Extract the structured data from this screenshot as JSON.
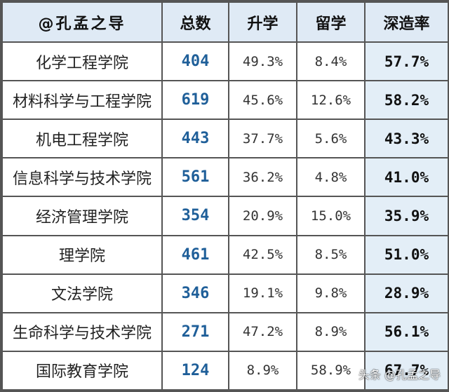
{
  "header": {
    "brand": "@孔孟之导",
    "total": "总数",
    "further_study": "升学",
    "study_abroad": "留学",
    "rate": "深造率"
  },
  "rows": [
    {
      "college": "化学工程学院",
      "total": "404",
      "further_study": "49.3%",
      "study_abroad": "8.4%",
      "rate": "57.7%"
    },
    {
      "college": "材料科学与工程学院",
      "total": "619",
      "further_study": "45.6%",
      "study_abroad": "12.6%",
      "rate": "58.2%"
    },
    {
      "college": "机电工程学院",
      "total": "443",
      "further_study": "37.7%",
      "study_abroad": "5.6%",
      "rate": "43.3%"
    },
    {
      "college": "信息科学与技术学院",
      "total": "561",
      "further_study": "36.2%",
      "study_abroad": "4.8%",
      "rate": "41.0%"
    },
    {
      "college": "经济管理学院",
      "total": "354",
      "further_study": "20.9%",
      "study_abroad": "15.0%",
      "rate": "35.9%"
    },
    {
      "college": "理学院",
      "total": "461",
      "further_study": "42.5%",
      "study_abroad": "8.5%",
      "rate": "51.0%"
    },
    {
      "college": "文法学院",
      "total": "346",
      "further_study": "19.1%",
      "study_abroad": "9.8%",
      "rate": "28.9%"
    },
    {
      "college": "生命科学与技术学院",
      "total": "271",
      "further_study": "47.2%",
      "study_abroad": "8.9%",
      "rate": "56.1%"
    },
    {
      "college": "国际教育学院",
      "total": "124",
      "further_study": "8.9%",
      "study_abroad": "58.9%",
      "rate": "67.7%"
    }
  ],
  "watermark": "头条 @孔孟之导",
  "colors": {
    "header_bg": "#dfeaf5",
    "rate_bg": "#e3eef7",
    "total_text": "#1f5f99",
    "border": "#555555"
  }
}
